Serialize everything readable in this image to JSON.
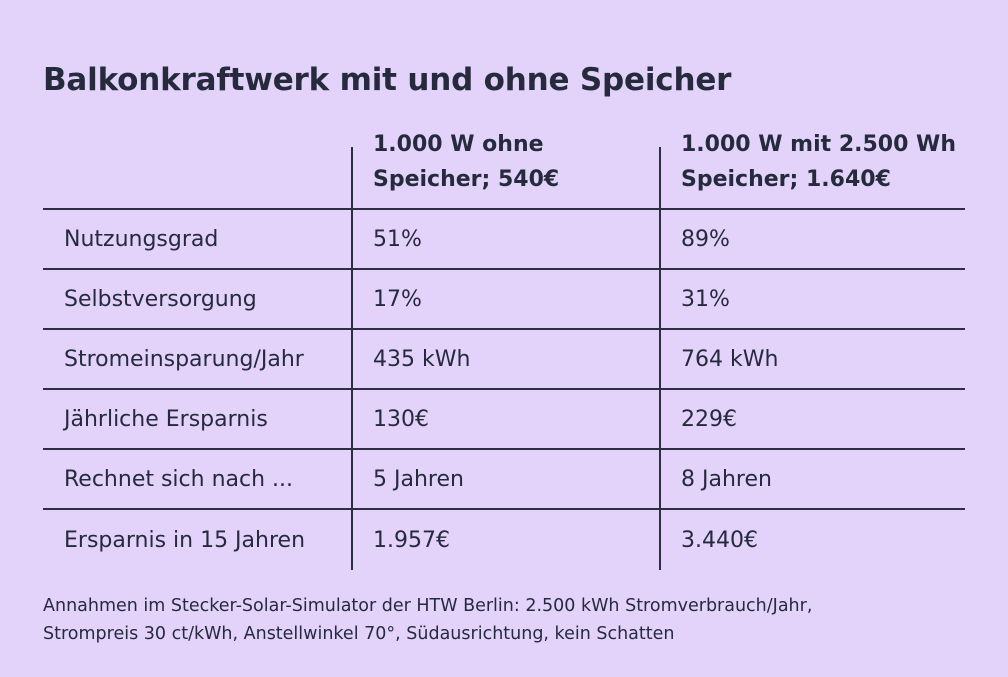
{
  "title": "Balkonkraftwerk mit und ohne Speicher",
  "table": {
    "headers": [
      "",
      [
        "1.000 W ohne",
        "Speicher; 540€"
      ],
      [
        "1.000 W mit 2.500 Wh",
        "Speicher; 1.640€"
      ]
    ],
    "rows": [
      [
        "Nutzungsgrad",
        "51%",
        "89%"
      ],
      [
        "Selbstversorgung",
        "17%",
        "31%"
      ],
      [
        "Stromeinsparung/Jahr",
        "435 kWh",
        "764 kWh"
      ],
      [
        "Jährliche Ersparnis",
        "130€",
        "229€"
      ],
      [
        "Rechnet sich nach ...",
        "5 Jahren",
        "8 Jahren"
      ],
      [
        "Ersparnis in 15 Jahren",
        "1.957€",
        "3.440€"
      ]
    ]
  },
  "footnote": [
    "Annahmen im Stecker-Solar-Simulator der HTW Berlin: 2.500 kWh Stromverbrauch/Jahr,",
    "Strompreis 30 ct/kWh, Anstellwinkel 70°, Südausrichtung, kein Schatten"
  ],
  "colors": {
    "background": "#e3d3fb",
    "text": "#262a3d",
    "lines": "#2c2f42"
  }
}
